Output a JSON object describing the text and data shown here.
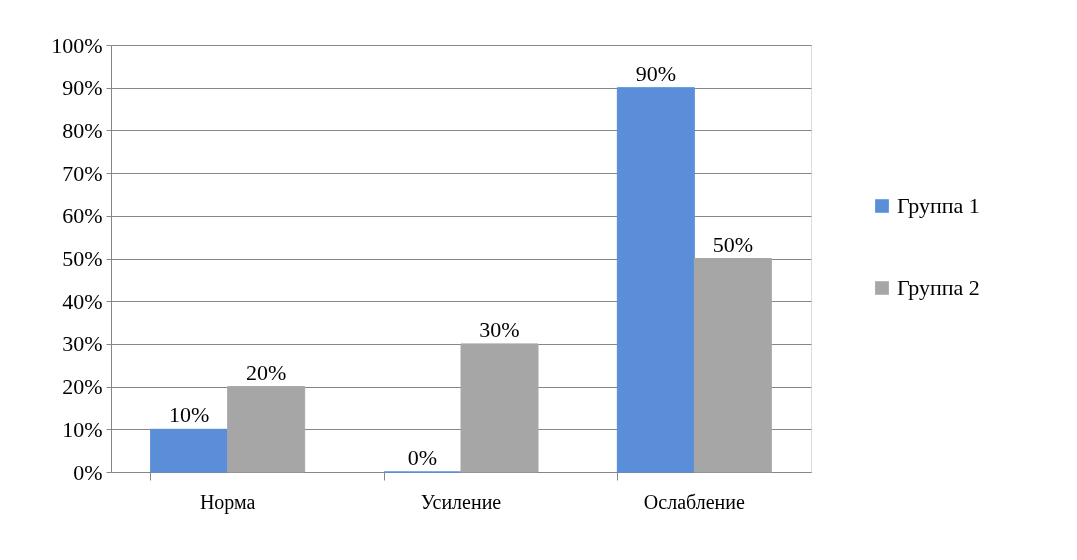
{
  "chart_data": {
    "type": "bar",
    "categories": [
      "Норма",
      "Усиление",
      "Ослабление"
    ],
    "series": [
      {
        "name": "Группа 1",
        "color": "#5b8ed8",
        "values": [
          10,
          0,
          90
        ],
        "value_labels": [
          "10%",
          "0%",
          "90%"
        ]
      },
      {
        "name": "Группа 2",
        "color": "#a6a6a6",
        "values": [
          20,
          30,
          50
        ],
        "value_labels": [
          "20%",
          "30%",
          "50%"
        ]
      }
    ],
    "ylim": [
      0,
      100
    ],
    "yticks": [
      {
        "value": 0,
        "label": "0%"
      },
      {
        "value": 10,
        "label": "10%"
      },
      {
        "value": 20,
        "label": "20%"
      },
      {
        "value": 30,
        "label": "30%"
      },
      {
        "value": 40,
        "label": "40%"
      },
      {
        "value": 50,
        "label": "50%"
      },
      {
        "value": 60,
        "label": "60%"
      },
      {
        "value": 70,
        "label": "70%"
      },
      {
        "value": 80,
        "label": "80%"
      },
      {
        "value": 90,
        "label": "90%"
      },
      {
        "value": 100,
        "label": "100%"
      }
    ],
    "grid": "y",
    "legend": "right"
  }
}
